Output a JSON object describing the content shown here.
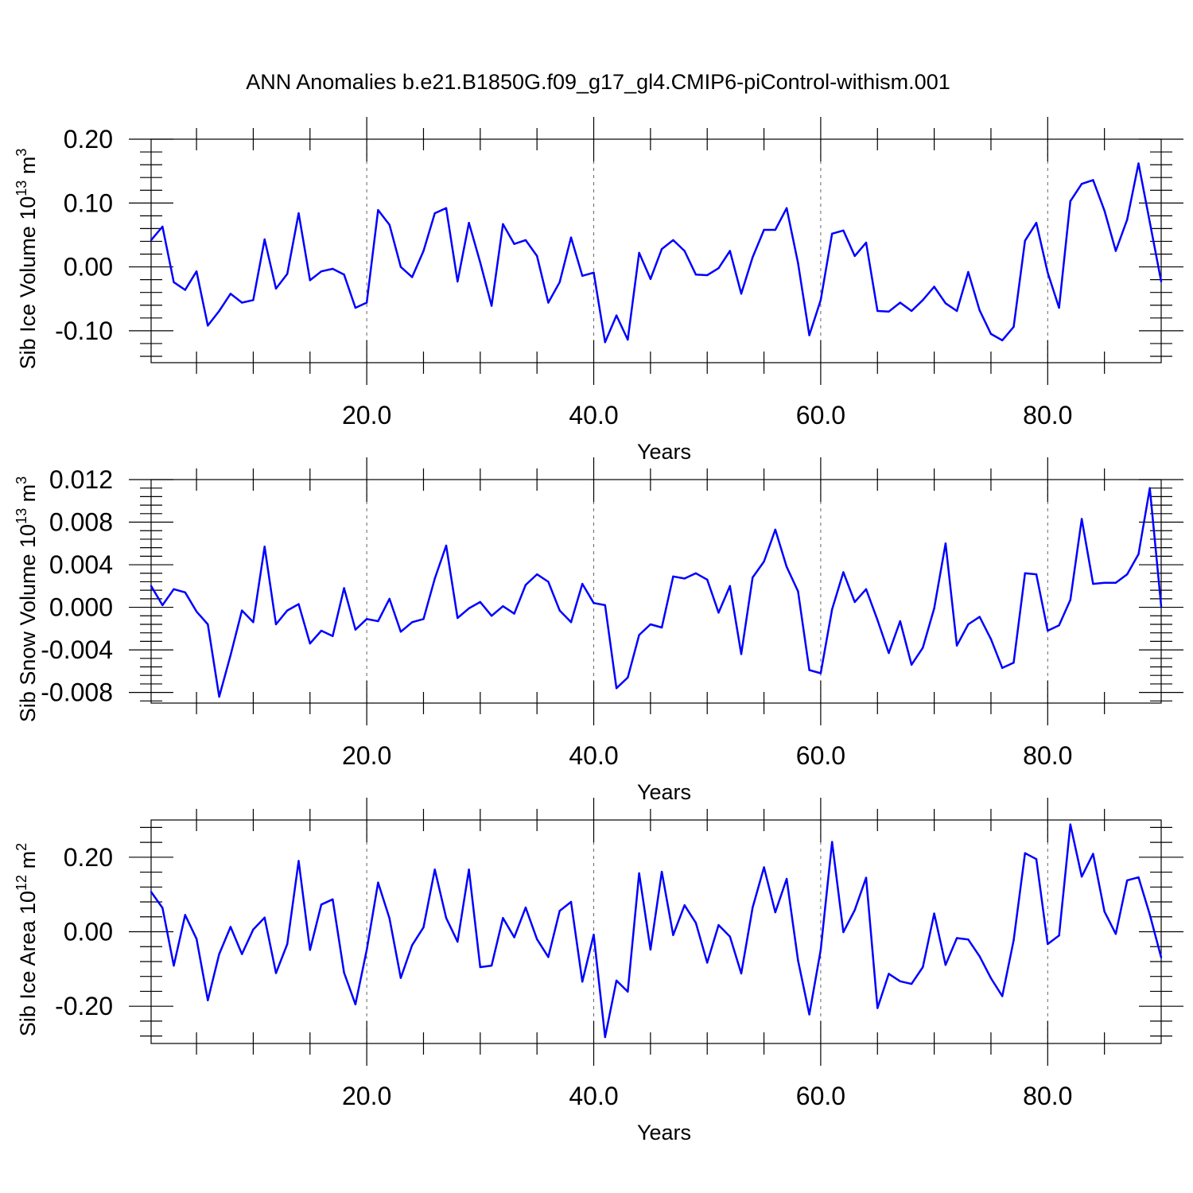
{
  "title": "ANN Anomalies b.e21.B1850G.f09_g17_gl4.CMIP6-piControl-withism.001",
  "colors": {
    "series": "#0000ff",
    "axes": "#000000",
    "background": "#ffffff"
  },
  "chart_data": [
    {
      "type": "line",
      "ylabel": "Sib Ice Volume",
      "ylabel_unit": {
        "base": "10",
        "exponent": "13",
        "unit": "m",
        "unit_exponent": "3"
      },
      "xlabel": "Years",
      "xlim": [
        1,
        90
      ],
      "ylim": [
        -0.15,
        0.2
      ],
      "xticks": [
        "20.0",
        "40.0",
        "60.0",
        "80.0"
      ],
      "xtick_values": [
        20,
        40,
        60,
        80
      ],
      "yticks": [
        "0.20",
        "0.10",
        "0.00",
        "-0.10"
      ],
      "ytick_values": [
        0.2,
        0.1,
        0.0,
        -0.1
      ],
      "grid": "vertical dashed at major x ticks",
      "x": [
        1,
        2,
        3,
        4,
        5,
        6,
        7,
        8,
        9,
        10,
        11,
        12,
        13,
        14,
        15,
        16,
        17,
        18,
        19,
        20,
        21,
        22,
        23,
        24,
        25,
        26,
        27,
        28,
        29,
        30,
        31,
        32,
        33,
        34,
        35,
        36,
        37,
        38,
        39,
        40,
        41,
        42,
        43,
        44,
        45,
        46,
        47,
        48,
        49,
        50,
        51,
        52,
        53,
        54,
        55,
        56,
        57,
        58,
        59,
        60,
        61,
        62,
        63,
        64,
        65,
        66,
        67,
        68,
        69,
        70,
        71,
        72,
        73,
        74,
        75,
        76,
        77,
        78,
        79,
        80,
        81,
        82,
        83,
        84,
        85,
        86,
        87,
        88,
        89,
        90
      ],
      "values": [
        0.042,
        0.063,
        -0.024,
        -0.036,
        -0.007,
        -0.092,
        -0.069,
        -0.042,
        -0.056,
        -0.052,
        0.043,
        -0.034,
        -0.011,
        0.084,
        -0.021,
        -0.007,
        -0.003,
        -0.012,
        -0.064,
        -0.056,
        0.089,
        0.066,
        0.0,
        -0.016,
        0.025,
        0.084,
        0.092,
        -0.023,
        0.069,
        0.007,
        -0.061,
        0.067,
        0.036,
        0.042,
        0.017,
        -0.056,
        -0.024,
        0.046,
        -0.014,
        -0.009,
        -0.118,
        -0.076,
        -0.114,
        0.022,
        -0.019,
        0.028,
        0.042,
        0.025,
        -0.012,
        -0.013,
        -0.002,
        0.025,
        -0.042,
        0.015,
        0.058,
        0.058,
        0.092,
        0.006,
        -0.107,
        -0.052,
        0.052,
        0.057,
        0.017,
        0.038,
        -0.069,
        -0.07,
        -0.056,
        -0.069,
        -0.052,
        -0.031,
        -0.057,
        -0.069,
        -0.008,
        -0.068,
        -0.105,
        -0.115,
        -0.094,
        0.041,
        0.069,
        -0.009,
        -0.064,
        0.103,
        0.13,
        0.136,
        0.088,
        0.025,
        0.074,
        0.162,
        0.07,
        -0.023
      ]
    },
    {
      "type": "line",
      "ylabel": "Sib Snow Volume",
      "ylabel_unit": {
        "base": "10",
        "exponent": "13",
        "unit": "m",
        "unit_exponent": "3"
      },
      "xlabel": "Years",
      "xlim": [
        1,
        90
      ],
      "ylim": [
        -0.009,
        0.012
      ],
      "xticks": [
        "20.0",
        "40.0",
        "60.0",
        "80.0"
      ],
      "xtick_values": [
        20,
        40,
        60,
        80
      ],
      "yticks": [
        "0.012",
        "0.008",
        "0.004",
        "0.000",
        "-0.004",
        "-0.008"
      ],
      "ytick_values": [
        0.012,
        0.008,
        0.004,
        0.0,
        -0.004,
        -0.008
      ],
      "grid": "vertical dashed at major x ticks",
      "x": [
        1,
        2,
        3,
        4,
        5,
        6,
        7,
        8,
        9,
        10,
        11,
        12,
        13,
        14,
        15,
        16,
        17,
        18,
        19,
        20,
        21,
        22,
        23,
        24,
        25,
        26,
        27,
        28,
        29,
        30,
        31,
        32,
        33,
        34,
        35,
        36,
        37,
        38,
        39,
        40,
        41,
        42,
        43,
        44,
        45,
        46,
        47,
        48,
        49,
        50,
        51,
        52,
        53,
        54,
        55,
        56,
        57,
        58,
        59,
        60,
        61,
        62,
        63,
        64,
        65,
        66,
        67,
        68,
        69,
        70,
        71,
        72,
        73,
        74,
        75,
        76,
        77,
        78,
        79,
        80,
        81,
        82,
        83,
        84,
        85,
        86,
        87,
        88,
        89,
        90
      ],
      "values": [
        0.002,
        0.0002,
        0.0017,
        0.0014,
        -0.0004,
        -0.0016,
        -0.0084,
        -0.0045,
        -0.0003,
        -0.0014,
        0.0057,
        -0.0016,
        -0.0003,
        0.0003,
        -0.0034,
        -0.0022,
        -0.0027,
        0.0018,
        -0.0021,
        -0.0011,
        -0.0013,
        0.0008,
        -0.0023,
        -0.0014,
        -0.0011,
        0.0027,
        0.0058,
        -0.001,
        -0.0001,
        0.0005,
        -0.0008,
        0.0001,
        -0.0006,
        0.0021,
        0.0031,
        0.0024,
        -0.0003,
        -0.0014,
        0.0022,
        0.0004,
        0.0002,
        -0.0076,
        -0.0066,
        -0.0026,
        -0.0016,
        -0.0019,
        0.0029,
        0.0027,
        0.0032,
        0.0026,
        -0.0005,
        0.002,
        -0.0044,
        0.0028,
        0.0043,
        0.0073,
        0.0038,
        0.0015,
        -0.0059,
        -0.0062,
        -0.0002,
        0.0033,
        0.0005,
        0.0017,
        -0.0012,
        -0.0043,
        -0.0013,
        -0.0054,
        -0.0038,
        -0.0001,
        0.006,
        -0.0036,
        -0.0016,
        -0.0009,
        -0.003,
        -0.0057,
        -0.0052,
        0.0032,
        0.0031,
        -0.0022,
        -0.0017,
        0.0007,
        0.0083,
        0.0022,
        0.0023,
        0.0023,
        0.0031,
        0.005,
        0.0112,
        0.0001
      ]
    },
    {
      "type": "line",
      "ylabel": "Sib Ice Area",
      "ylabel_unit": {
        "base": "10",
        "exponent": "12",
        "unit": "m",
        "unit_exponent": "2"
      },
      "xlabel": "Years",
      "xlim": [
        1,
        90
      ],
      "ylim": [
        -0.3,
        0.3
      ],
      "xticks": [
        "20.0",
        "40.0",
        "60.0",
        "80.0"
      ],
      "xtick_values": [
        20,
        40,
        60,
        80
      ],
      "yticks": [
        "0.20",
        "0.00",
        "-0.20"
      ],
      "ytick_values": [
        0.2,
        0.0,
        -0.2
      ],
      "grid": "vertical dashed at major x ticks",
      "x": [
        1,
        2,
        3,
        4,
        5,
        6,
        7,
        8,
        9,
        10,
        11,
        12,
        13,
        14,
        15,
        16,
        17,
        18,
        19,
        20,
        21,
        22,
        23,
        24,
        25,
        26,
        27,
        28,
        29,
        30,
        31,
        32,
        33,
        34,
        35,
        36,
        37,
        38,
        39,
        40,
        41,
        42,
        43,
        44,
        45,
        46,
        47,
        48,
        49,
        50,
        51,
        52,
        53,
        54,
        55,
        56,
        57,
        58,
        59,
        60,
        61,
        62,
        63,
        64,
        65,
        66,
        67,
        68,
        69,
        70,
        71,
        72,
        73,
        74,
        75,
        76,
        77,
        78,
        79,
        80,
        81,
        82,
        83,
        84,
        85,
        86,
        87,
        88,
        89,
        90
      ],
      "values": [
        0.107,
        0.064,
        -0.091,
        0.045,
        -0.019,
        -0.184,
        -0.06,
        0.013,
        -0.06,
        0.006,
        0.038,
        -0.111,
        -0.033,
        0.19,
        -0.049,
        0.073,
        0.087,
        -0.11,
        -0.195,
        -0.049,
        0.132,
        0.036,
        -0.124,
        -0.036,
        0.012,
        0.167,
        0.037,
        -0.027,
        0.167,
        -0.095,
        -0.091,
        0.037,
        -0.015,
        0.065,
        -0.02,
        -0.068,
        0.056,
        0.08,
        -0.134,
        -0.008,
        -0.283,
        -0.131,
        -0.161,
        0.157,
        -0.048,
        0.161,
        -0.009,
        0.071,
        0.024,
        -0.083,
        0.018,
        -0.013,
        -0.112,
        0.065,
        0.173,
        0.052,
        0.142,
        -0.077,
        -0.222,
        -0.049,
        0.241,
        -0.001,
        0.058,
        0.145,
        -0.205,
        -0.113,
        -0.133,
        -0.14,
        -0.095,
        0.049,
        -0.089,
        -0.017,
        -0.021,
        -0.066,
        -0.125,
        -0.173,
        -0.023,
        0.211,
        0.195,
        -0.033,
        -0.01,
        0.288,
        0.148,
        0.209,
        0.054,
        -0.006,
        0.138,
        0.146,
        0.046,
        -0.069
      ]
    }
  ]
}
